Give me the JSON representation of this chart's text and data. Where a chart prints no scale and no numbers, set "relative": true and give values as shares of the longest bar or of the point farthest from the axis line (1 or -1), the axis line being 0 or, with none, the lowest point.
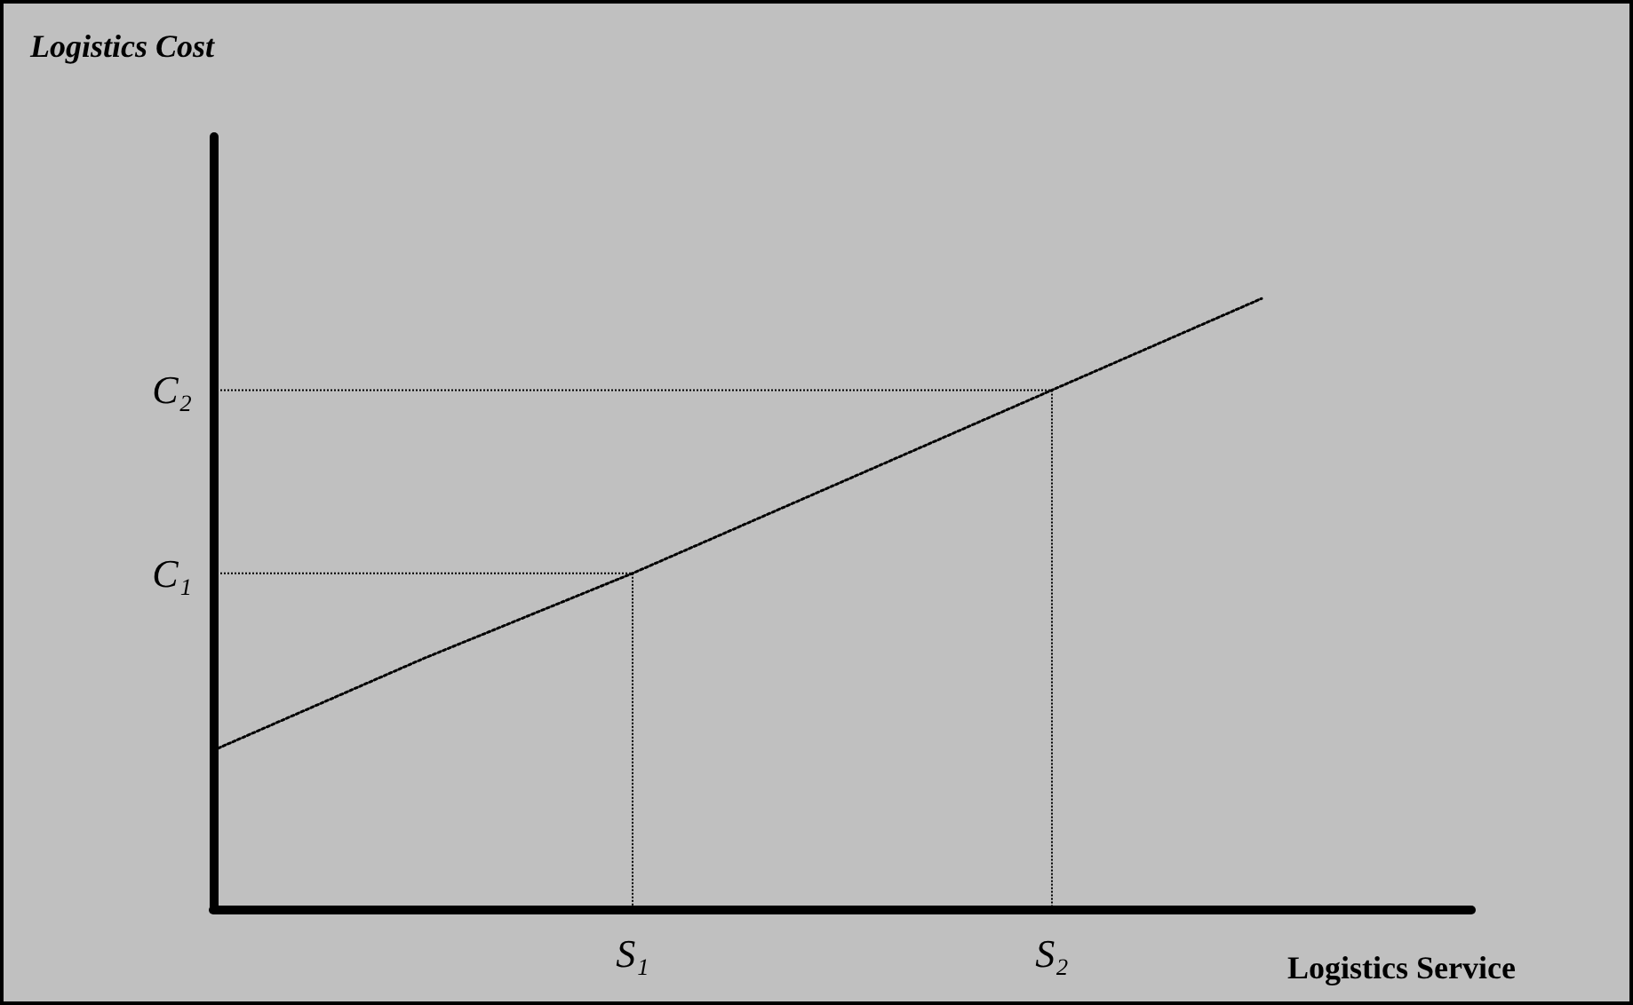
{
  "chart_data": {
    "type": "line",
    "relative": true,
    "title": "Logistics Cost",
    "xlabel": "Logistics Service",
    "categories": [
      null,
      null,
      "S₁",
      null,
      "S₂",
      null,
      null
    ],
    "series": [
      {
        "color": "#000000",
        "values": [
          0.26,
          0.41,
          0.55,
          0.7,
          0.85,
          1,
          null
        ]
      }
    ],
    "annotations": [
      "C₁",
      "C₂"
    ],
    "marker": "none",
    "line_style": "dotted"
  }
}
